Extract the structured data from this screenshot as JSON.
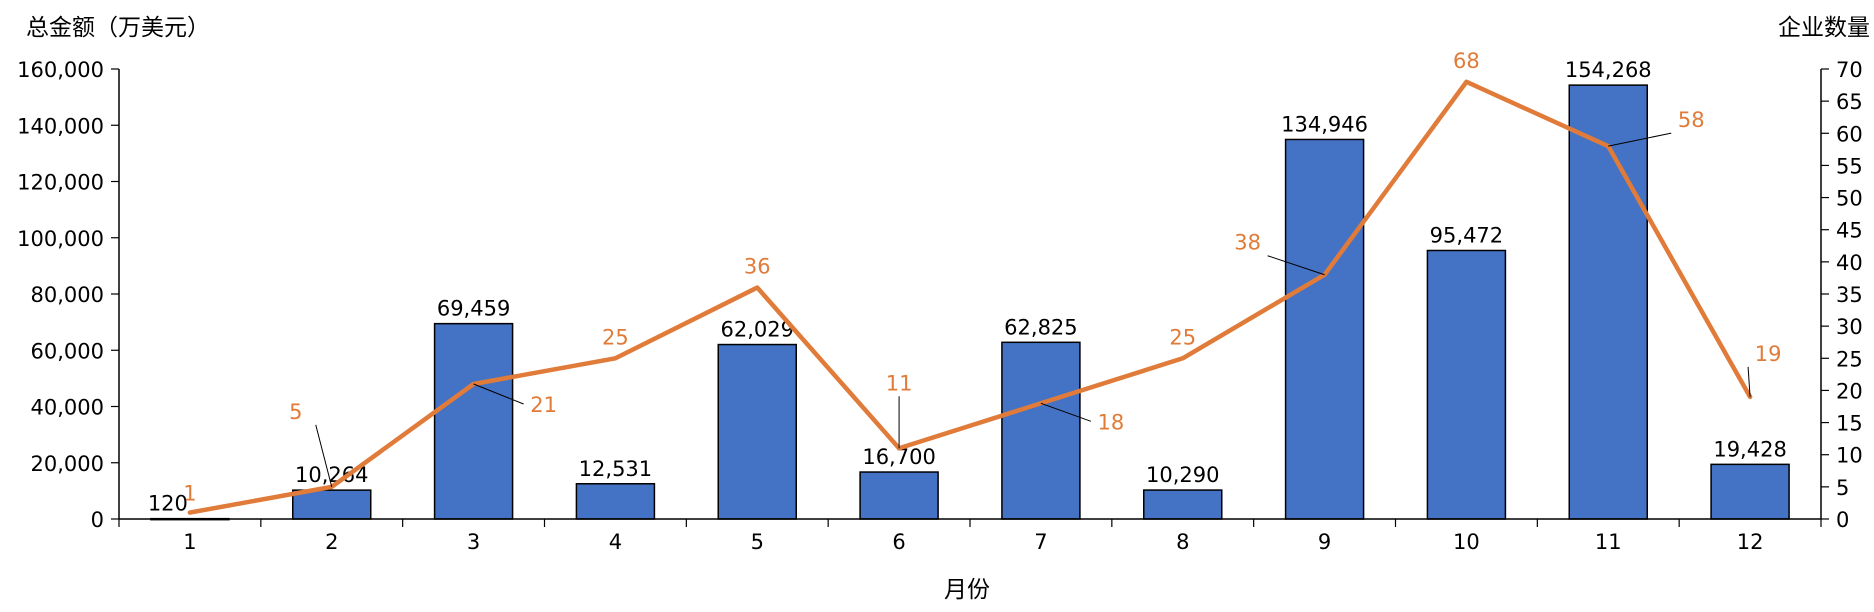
{
  "chart_data": {
    "type": "bar",
    "title": "",
    "xlabel": "月份",
    "ylabel_left": "总金额（万美元）",
    "ylabel_right": "企业数量",
    "categories": [
      "1",
      "2",
      "3",
      "4",
      "5",
      "6",
      "7",
      "8",
      "9",
      "10",
      "11",
      "12"
    ],
    "series": [
      {
        "name": "",
        "type": "bar",
        "axis": "left",
        "color": "#4472C4",
        "values": [
          120,
          10264,
          69459,
          12531,
          62029,
          16700,
          62825,
          10290,
          134946,
          95472,
          154268,
          19428
        ],
        "labels": [
          "120",
          "10,264",
          "69,459",
          "12,531",
          "62,029",
          "16,700",
          "62,825",
          "10,290",
          "134,946",
          "95,472",
          "154,268",
          "19,428"
        ]
      },
      {
        "name": "",
        "type": "line",
        "axis": "right",
        "color": "#E07B39",
        "values": [
          1,
          5,
          21,
          25,
          36,
          11,
          18,
          25,
          38,
          68,
          58,
          19
        ],
        "labels": [
          "1",
          "5",
          "21",
          "25",
          "36",
          "11",
          "18",
          "25",
          "38",
          "68",
          "58",
          "19"
        ]
      }
    ],
    "ylim_left": [
      0,
      160000
    ],
    "yticks_left": [
      "0",
      "20,000",
      "40,000",
      "60,000",
      "80,000",
      "100,000",
      "120,000",
      "140,000",
      "160,000"
    ],
    "ylim_right": [
      0,
      70
    ],
    "yticks_right": [
      "0",
      "5",
      "10",
      "15",
      "20",
      "25",
      "30",
      "35",
      "40",
      "45",
      "50",
      "55",
      "60",
      "65",
      "70"
    ],
    "grid": false,
    "legend": "none"
  }
}
